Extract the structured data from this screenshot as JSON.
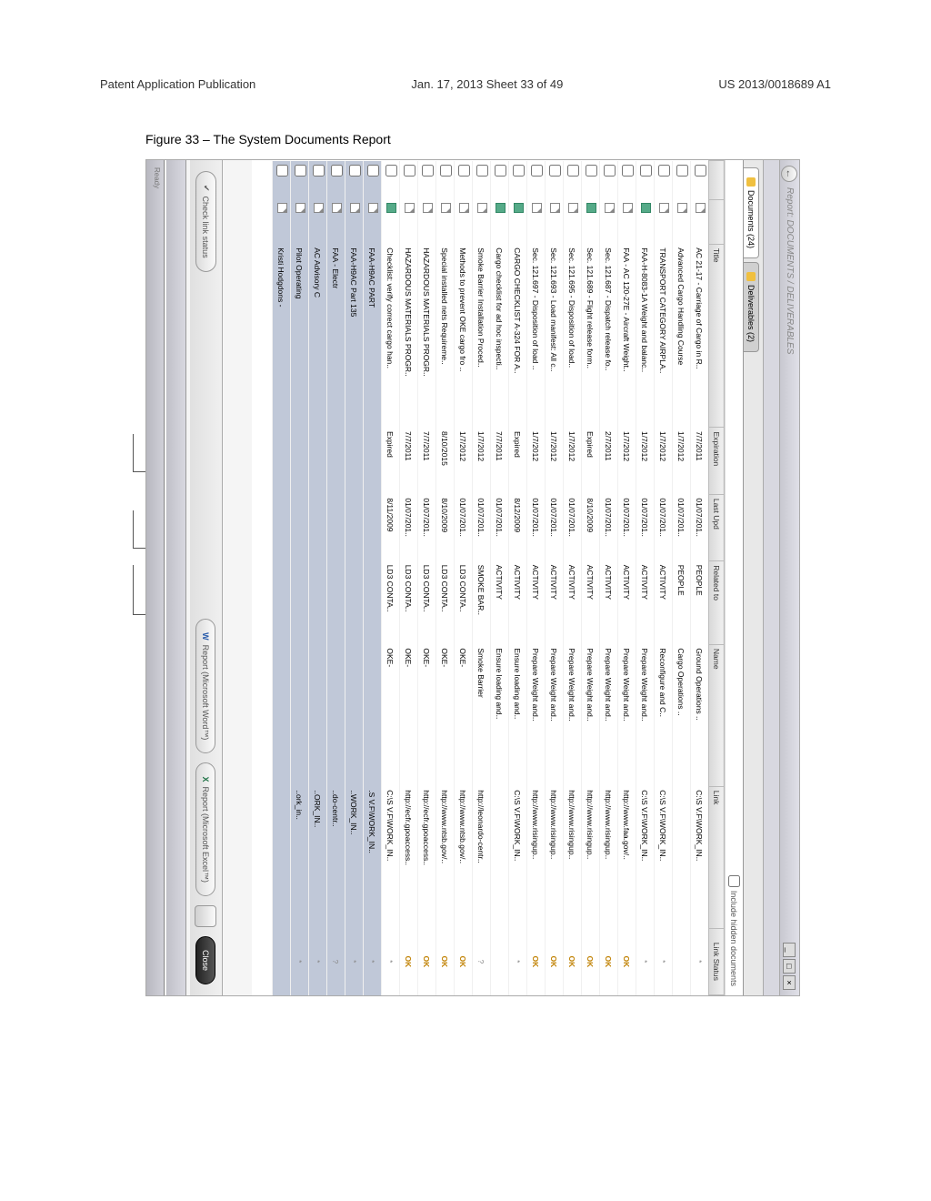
{
  "header": {
    "left": "Patent Application Publication",
    "center": "Jan. 17, 2013  Sheet 33 of 49",
    "right": "US 2013/0018689 A1"
  },
  "figure_label": "Figure 33 – The System Documents Report",
  "window": {
    "title": "Report: DOCUMENTS / DELIVERABLES",
    "section": "",
    "tabs": {
      "docs": "Documents (24)",
      "deliv": "Deliverables (2)"
    },
    "checkbox_label": "Include hidden documents",
    "columns": {
      "title": "Title",
      "expiration": "Expiration",
      "lastupd": "Last Upd",
      "related": "Related to",
      "name": "Name",
      "link": "Link",
      "status": "Link Status"
    },
    "rows": [
      {
        "t": "AC 21-17 - Carriage of Cargo in R..",
        "e": "7/7/2011",
        "l": "01/07/201..",
        "r": "PEOPLE",
        "n": "Ground Operations ..",
        "k": "C:\\S V.F\\WORK_IN..",
        "s": "*"
      },
      {
        "t": "Advanced Cargo Handling Course",
        "e": "1/7/2012",
        "l": "01/07/201..",
        "r": "PEOPLE",
        "n": "Cargo Operations ..",
        "k": "",
        "s": ""
      },
      {
        "t": "TRANSPORT CATEGORY AIRPLA..",
        "e": "1/7/2012",
        "l": "01/07/201..",
        "r": "ACTIVITY",
        "n": "Reconfigure and C..",
        "k": "C:\\S V.F\\WORK_IN..",
        "s": "*"
      },
      {
        "t": "FAA-H-8083-1A Weight and balanc..",
        "e": "1/7/2012",
        "l": "01/07/201..",
        "r": "ACTIVITY",
        "n": "Prepare Weight and..",
        "k": "C:\\S V.F\\WORK_IN..",
        "s": "*",
        "ic": "special"
      },
      {
        "t": "FAA - AC 120-27E - Aircraft Weight..",
        "e": "1/7/2012",
        "l": "01/07/201..",
        "r": "ACTIVITY",
        "n": "Prepare Weight and..",
        "k": "http://www.faa.gov/..",
        "s": "OK"
      },
      {
        "t": "Sec. 121.687 - Dispatch release fo..",
        "e": "2/7/2011",
        "l": "01/07/201..",
        "r": "ACTIVITY",
        "n": "Prepare Weight and..",
        "k": "http://www.risingup..",
        "s": "OK"
      },
      {
        "t": "Sec. 121.689 - Flight release form..",
        "e": "Expired",
        "l": "8/10/2009",
        "r": "ACTIVITY",
        "n": "Prepare Weight and..",
        "k": "http://www.risingup..",
        "s": "OK",
        "ic": "special"
      },
      {
        "t": "Sec. 121.695 - Disposition of load..",
        "e": "1/7/2012",
        "l": "01/07/201..",
        "r": "ACTIVITY",
        "n": "Prepare Weight and..",
        "k": "http://www.risingup..",
        "s": "OK"
      },
      {
        "t": "Sec. 121.693 - Load manifest: All c..",
        "e": "1/7/2012",
        "l": "01/07/201..",
        "r": "ACTIVITY",
        "n": "Prepare Weight and..",
        "k": "http://www.risingup..",
        "s": "OK"
      },
      {
        "t": "Sec. 121.697 - Disposition of load ..",
        "e": "1/7/2012",
        "l": "01/07/201..",
        "r": "ACTIVITY",
        "n": "Prepare Weight and..",
        "k": "http://www.risingup..",
        "s": "OK"
      },
      {
        "t": "CARGO CHECKLIST A-324 FOR A..",
        "e": "Expired",
        "l": "8/12/2009",
        "r": "ACTIVITY",
        "n": "Ensure loading and..",
        "k": "C:\\S V.F\\WORK_IN..",
        "s": "*",
        "ic": "special"
      },
      {
        "t": "Cargo checklist for ad hoc inspecti..",
        "e": "7/7/2011",
        "l": "01/07/201..",
        "r": "ACTIVITY",
        "n": "Ensure loading and..",
        "k": "",
        "s": "",
        "ic": "special"
      },
      {
        "t": "Smoke Barrier Installation Proced..",
        "e": "1/7/2012",
        "l": "01/07/201..",
        "r": "SMOKE BAR..",
        "n": "Smoke Barrier <ins..",
        "k": "http://leonardo-centr..",
        "s": "?"
      },
      {
        "t": "Methods to prevent OKE cargo fro ..",
        "e": "1/7/2012",
        "l": "01/07/201..",
        "r": "LD3 CONTA..",
        "n": "OKE-<Insert ID>",
        "k": "http://www.ntsb.gov/..",
        "s": "OK"
      },
      {
        "t": "Special installed nets Requireme..",
        "e": "8/10/2015",
        "l": "8/10/2009",
        "r": "LD3 CONTA..",
        "n": "OKE-<Insert ID>",
        "k": "http://www.ntsb.gov/..",
        "s": "OK"
      },
      {
        "t": "HAZARDOUS MATERIALS PROGR..",
        "e": "7/7/2011",
        "l": "01/07/201..",
        "r": "LD3 CONTA..",
        "n": "OKE-<Insert ID>",
        "k": "http://ecfr.gpoaccess..",
        "s": "OK"
      },
      {
        "t": "HAZARDOUS MATERIALS PROGR..",
        "e": "7/7/2011",
        "l": "01/07/201..",
        "r": "LD3 CONTA..",
        "n": "OKE-<Insert ID>",
        "k": "http://ecfr.gpoaccess..",
        "s": "OK"
      },
      {
        "t": "Checklist: verify correct cargo han..",
        "e": "Expired",
        "l": "8/11/2009",
        "r": "LD3 CONTA..",
        "n": "OKE-<Insert ID>",
        "k": "C:\\S V.F\\WORK_IN..",
        "s": "*",
        "ic": "special"
      },
      {
        "t": "FAA-H9AC PART",
        "e": "",
        "l": "",
        "r": "",
        "n": "",
        "k": ".S V.F\\WORK_IN..",
        "s": "*",
        "sel": true
      },
      {
        "t": "FAA-H9AC Part 135",
        "e": "",
        "l": "",
        "r": "",
        "n": "",
        "k": "..WORK_IN..",
        "s": "*",
        "sel": true
      },
      {
        "t": "FAA - Electr",
        "e": "",
        "l": "",
        "r": "",
        "n": "",
        "k": "..do-centr..",
        "s": "?",
        "sel": true
      },
      {
        "t": "AC Advisory C",
        "e": "",
        "l": "",
        "r": "",
        "n": "",
        "k": "..ORK_IN..",
        "s": "*",
        "sel": true
      },
      {
        "t": "Pilot Operating",
        "e": "",
        "l": "",
        "r": "",
        "n": "",
        "k": "..ork_in..",
        "s": "*",
        "sel": true
      },
      {
        "t": "Kristi Hodgdons - ",
        "e": "",
        "l": "",
        "r": "",
        "n": "",
        "k": "",
        "s": "",
        "sel": true
      }
    ],
    "footer": {
      "check": "Check link status",
      "word": "Report (Microsoft Word™)",
      "excel": "Report (Microsoft Excel™)",
      "close": "Close"
    },
    "statusbar": "Ready"
  }
}
